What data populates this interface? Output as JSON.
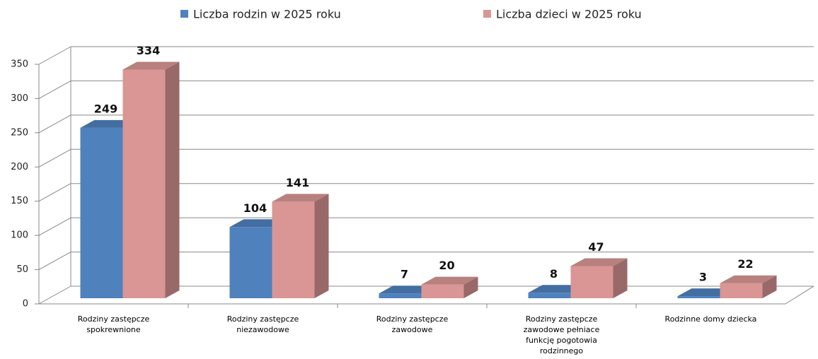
{
  "chart_data": {
    "type": "bar3d",
    "categories": [
      "Rodziny zastępcze spokrewnione",
      "Rodziny zastępcze niezawodowe",
      "Rodziny zastępcze zawodowe",
      "Rodziny zastępcze zawodowe pełniace funkcję pogotowia rodzinnego",
      "Rodzinne domy dziecka"
    ],
    "series": [
      {
        "name": "Liczba rodzin w 2025 roku",
        "color": "#4f81bd",
        "values": [
          249,
          104,
          7,
          8,
          3
        ]
      },
      {
        "name": "Liczba dzieci w 2025 roku",
        "color": "#d99694",
        "values": [
          334,
          141,
          20,
          47,
          22
        ]
      }
    ],
    "ylim": [
      0,
      350
    ],
    "yticks": [
      0,
      50,
      100,
      150,
      200,
      250,
      300,
      350
    ],
    "grid": true,
    "legend": "top"
  }
}
